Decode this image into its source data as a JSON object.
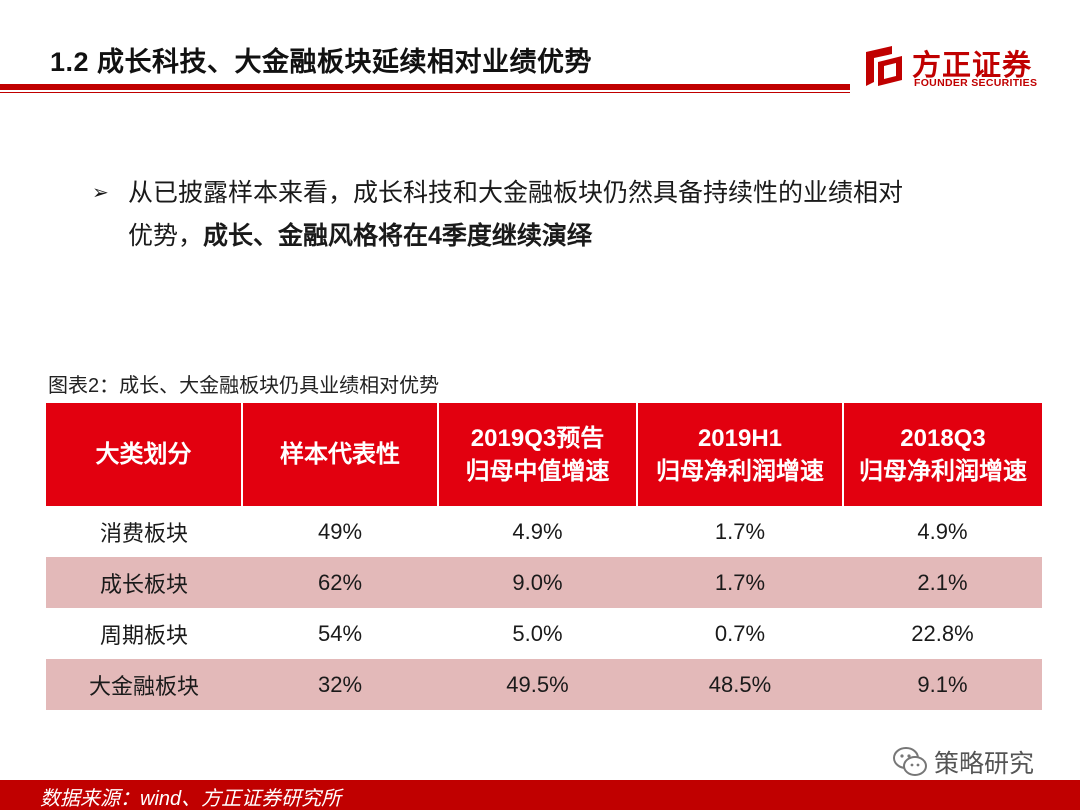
{
  "header": {
    "title": "1.2 成长科技、大金融板块延续相对业绩优势",
    "logo_cn": "方正证券",
    "logo_en": "FOUNDER SECURITIES"
  },
  "bullet": {
    "marker": "➢",
    "line1": "从已披露样本来看，成长科技和大金融板块仍然具备持续性的业绩相对",
    "line2_plain": "优势，",
    "line2_bold": "成长、金融风格将在4季度继续演绎"
  },
  "table": {
    "caption": "图表2：成长、大金融板块仍具业绩相对优势",
    "headers": [
      {
        "line1": "大类划分",
        "line2": ""
      },
      {
        "line1": "样本代表性",
        "line2": ""
      },
      {
        "line1": "2019Q3预告",
        "line2": "归母中值增速"
      },
      {
        "line1": "2019H1",
        "line2": "归母净利润增速"
      },
      {
        "line1": "2018Q3",
        "line2": "归母净利润增速"
      }
    ],
    "rows": [
      [
        "消费板块",
        "49%",
        "4.9%",
        "1.7%",
        "4.9%"
      ],
      [
        "成长板块",
        "62%",
        "9.0%",
        "1.7%",
        "2.1%"
      ],
      [
        "周期板块",
        "54%",
        "5.0%",
        "0.7%",
        "22.8%"
      ],
      [
        "大金融板块",
        "32%",
        "49.5%",
        "48.5%",
        "9.1%"
      ]
    ]
  },
  "watermark": {
    "text": "策略研究",
    "icon": "wechat-icon"
  },
  "footer": {
    "source": "数据来源：wind、方正证券研究所"
  },
  "colors": {
    "brand_red": "#c00000",
    "header_red": "#e2000f",
    "alt_row": "#e3b9b9"
  }
}
